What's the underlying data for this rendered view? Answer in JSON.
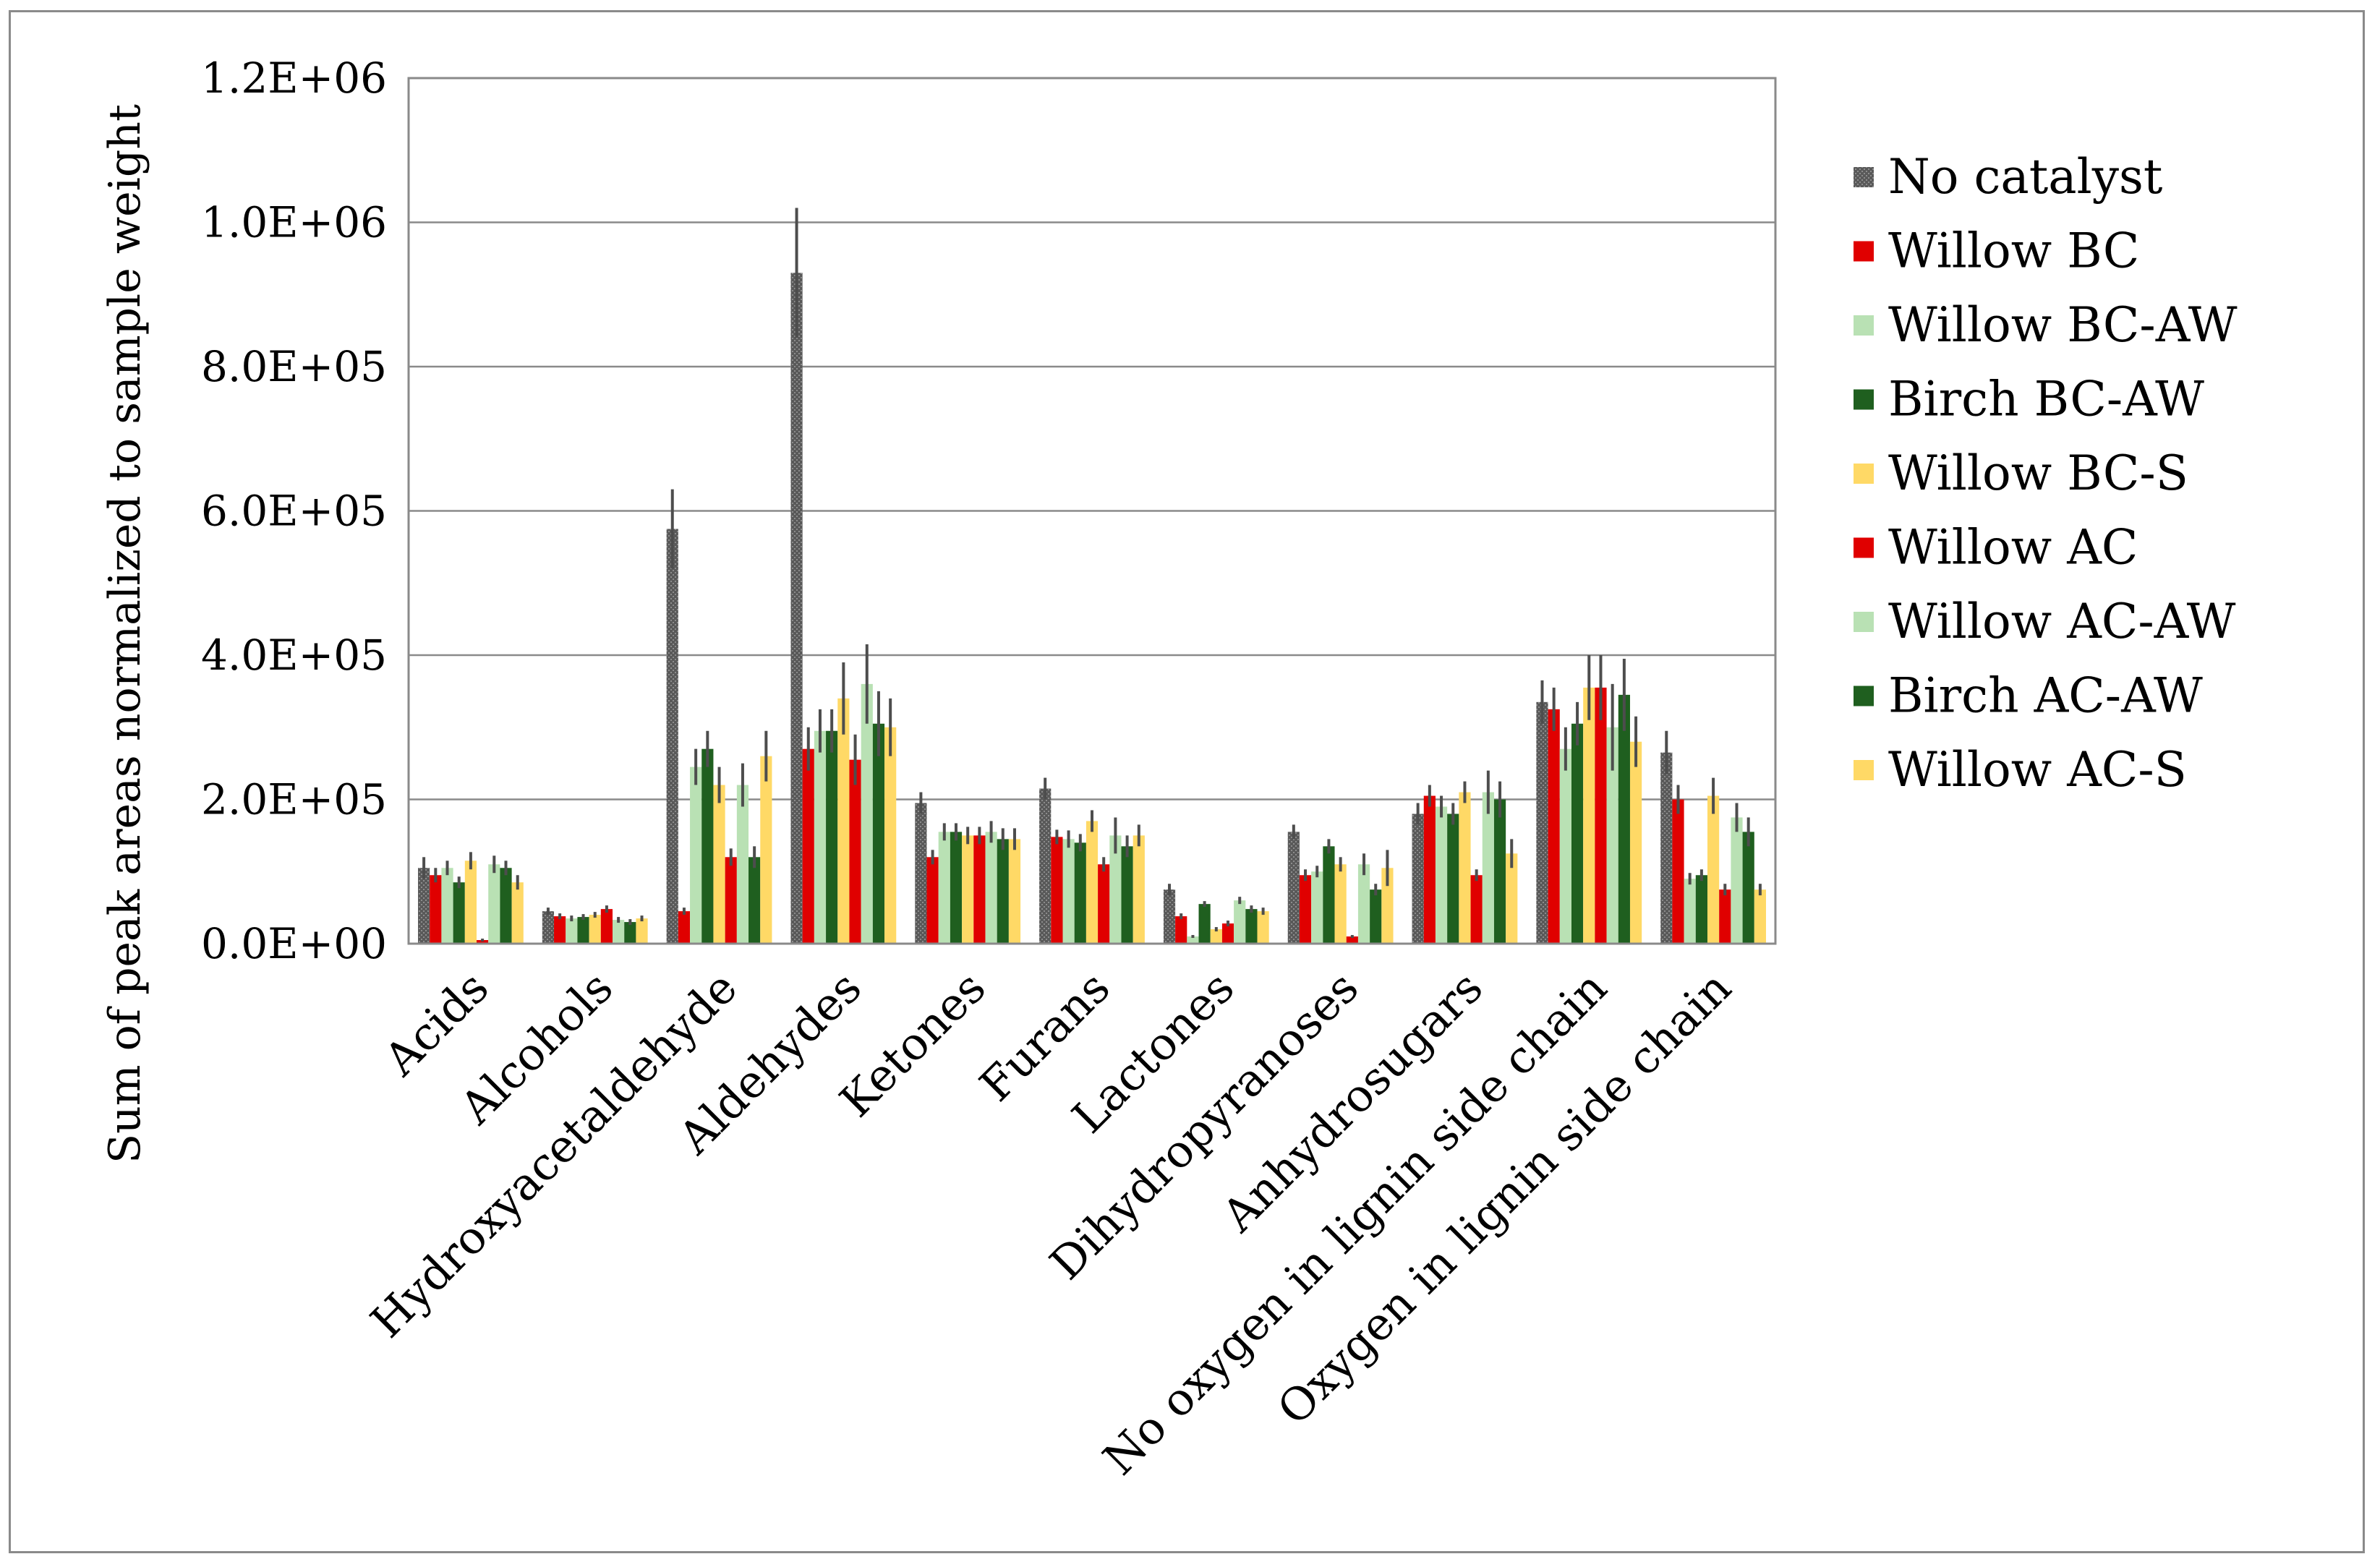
{
  "chart_data": {
    "type": "bar",
    "title": "",
    "xlabel": "",
    "ylabel": "Sum of peak areas normalized to sample weight",
    "ylim": [
      0,
      1200000
    ],
    "y_ticks": [
      0,
      200000,
      400000,
      600000,
      800000,
      1000000,
      1200000
    ],
    "y_tick_labels": [
      "0.0E+00",
      "2.0E+05",
      "4.0E+05",
      "6.0E+05",
      "8.0E+05",
      "1.0E+06",
      "1.2E+06"
    ],
    "grid": true,
    "legend_position": "right",
    "categories": [
      "Acids",
      "Alcohols",
      "Hydroxyacetaldehyde",
      "Aldehydes",
      "Ketones",
      "Furans",
      "Lactones",
      "Dihydropyranoses",
      "Anhydrosugars",
      "No oxygen in lignin side chain",
      "Oxygen in lignin side chain"
    ],
    "series": [
      {
        "name": "No catalyst",
        "color": "#595959",
        "pattern": "dotted",
        "values": [
          105000,
          45000,
          575000,
          930000,
          195000,
          215000,
          75000,
          155000,
          180000,
          335000,
          265000
        ],
        "errors": [
          15000,
          5000,
          55000,
          90000,
          15000,
          15000,
          8000,
          10000,
          15000,
          30000,
          30000
        ]
      },
      {
        "name": "Willow BC",
        "color": "#e00000",
        "values": [
          95000,
          38000,
          45000,
          270000,
          120000,
          148000,
          38000,
          95000,
          205000,
          325000,
          200000
        ],
        "errors": [
          10000,
          4000,
          5000,
          30000,
          10000,
          10000,
          4000,
          8000,
          15000,
          30000,
          20000
        ]
      },
      {
        "name": "Willow BC-AW",
        "color": "#b9e1b4",
        "values": [
          105000,
          35000,
          245000,
          295000,
          155000,
          145000,
          10000,
          100000,
          190000,
          270000,
          90000
        ],
        "errors": [
          10000,
          4000,
          25000,
          30000,
          12000,
          12000,
          2000,
          8000,
          15000,
          30000,
          8000
        ]
      },
      {
        "name": "Birch BC-AW",
        "color": "#1f5f1f",
        "values": [
          85000,
          37000,
          270000,
          295000,
          155000,
          140000,
          55000,
          135000,
          180000,
          305000,
          95000
        ],
        "errors": [
          8000,
          4000,
          25000,
          30000,
          12000,
          12000,
          4000,
          10000,
          15000,
          30000,
          8000
        ]
      },
      {
        "name": "Willow BC-S",
        "color": "#ffd966",
        "values": [
          115000,
          40000,
          220000,
          340000,
          150000,
          170000,
          20000,
          110000,
          210000,
          355000,
          205000
        ],
        "errors": [
          12000,
          4000,
          25000,
          50000,
          12000,
          15000,
          3000,
          10000,
          15000,
          45000,
          25000
        ]
      },
      {
        "name": "Willow AC",
        "color": "#e00000",
        "values": [
          5000,
          48000,
          120000,
          255000,
          150000,
          110000,
          28000,
          10000,
          95000,
          355000,
          75000
        ],
        "errors": [
          2000,
          5000,
          12000,
          35000,
          12000,
          10000,
          4000,
          2000,
          8000,
          45000,
          8000
        ]
      },
      {
        "name": "Willow AC-AW",
        "color": "#b9e1b4",
        "values": [
          110000,
          33000,
          220000,
          360000,
          155000,
          150000,
          60000,
          110000,
          210000,
          300000,
          175000
        ],
        "errors": [
          12000,
          4000,
          30000,
          55000,
          15000,
          25000,
          5000,
          15000,
          30000,
          60000,
          20000
        ]
      },
      {
        "name": "Birch AC-AW",
        "color": "#1f5f1f",
        "values": [
          105000,
          30000,
          120000,
          305000,
          145000,
          135000,
          48000,
          75000,
          200000,
          345000,
          155000
        ],
        "errors": [
          10000,
          4000,
          15000,
          45000,
          15000,
          15000,
          5000,
          8000,
          25000,
          50000,
          20000
        ]
      },
      {
        "name": "Willow AC-S",
        "color": "#ffd966",
        "values": [
          85000,
          35000,
          260000,
          300000,
          145000,
          150000,
          45000,
          105000,
          125000,
          280000,
          75000
        ],
        "errors": [
          10000,
          4000,
          35000,
          40000,
          15000,
          15000,
          5000,
          25000,
          20000,
          35000,
          8000
        ]
      }
    ]
  }
}
